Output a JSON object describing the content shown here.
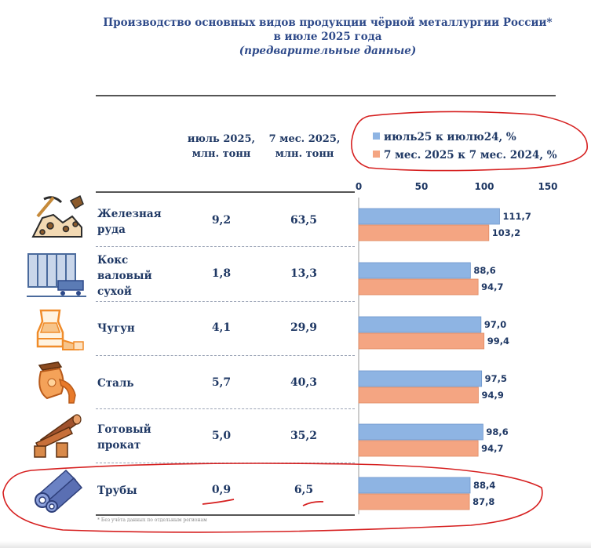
{
  "title": {
    "line1": "Производство основных видов продукции чёрной металлургии России*",
    "line2": "в июле 2025 года",
    "line3": "(предварительные данные)"
  },
  "columns": {
    "col1_line1": "июль 2025,",
    "col1_line2": "млн. тонн",
    "col2_line1": "7 мес. 2025,",
    "col2_line2": "млн. тонн"
  },
  "rows": [
    {
      "name_lines": [
        "Железная",
        "руда"
      ],
      "july": "9,2",
      "seven_months": "63,5",
      "icon": "ore-mining-icon"
    },
    {
      "name_lines": [
        "Кокс",
        "валовый",
        "сухой"
      ],
      "july": "1,8",
      "seven_months": "13,3",
      "icon": "coke-oven-icon"
    },
    {
      "name_lines": [
        "Чугун"
      ],
      "july": "4,1",
      "seven_months": "29,9",
      "icon": "blast-furnace-icon"
    },
    {
      "name_lines": [
        "Сталь"
      ],
      "july": "5,7",
      "seven_months": "40,3",
      "icon": "steel-ladle-icon"
    },
    {
      "name_lines": [
        "Готовый",
        "прокат"
      ],
      "july": "5,0",
      "seven_months": "35,2",
      "icon": "rolled-steel-icon"
    },
    {
      "name_lines": [
        "Трубы"
      ],
      "july": "0,9",
      "seven_months": "6,5",
      "icon": "pipes-icon"
    }
  ],
  "footnote": "* Без учёта данных по отдельным регионам",
  "chart_data": {
    "type": "bar",
    "orientation": "horizontal",
    "categories": [
      "Железная руда",
      "Кокс валовый сухой",
      "Чугун",
      "Сталь",
      "Готовый прокат",
      "Трубы"
    ],
    "series": [
      {
        "name": "июль25 к июлю24, %",
        "values": [
          111.7,
          88.6,
          97.0,
          97.5,
          98.6,
          88.4
        ],
        "labels": [
          "111,7",
          "88,6",
          "97,0",
          "97,5",
          "98,6",
          "88,4"
        ],
        "color": "#8eb4e3"
      },
      {
        "name": "7 мес. 2025 к 7 мес. 2024, %",
        "values": [
          103.2,
          94.7,
          99.4,
          94.9,
          94.7,
          87.8
        ],
        "labels": [
          "103,2",
          "94,7",
          "99,4",
          "94,9",
          "94,7",
          "87,8"
        ],
        "color": "#f4a582"
      }
    ],
    "xlim": [
      0,
      150
    ],
    "xticks": [
      "0",
      "50",
      "100",
      "150"
    ],
    "legend_position": "top"
  },
  "colors": {
    "title": "#2e4a8a",
    "text": "#1f3864",
    "annotation": "#d62020"
  }
}
